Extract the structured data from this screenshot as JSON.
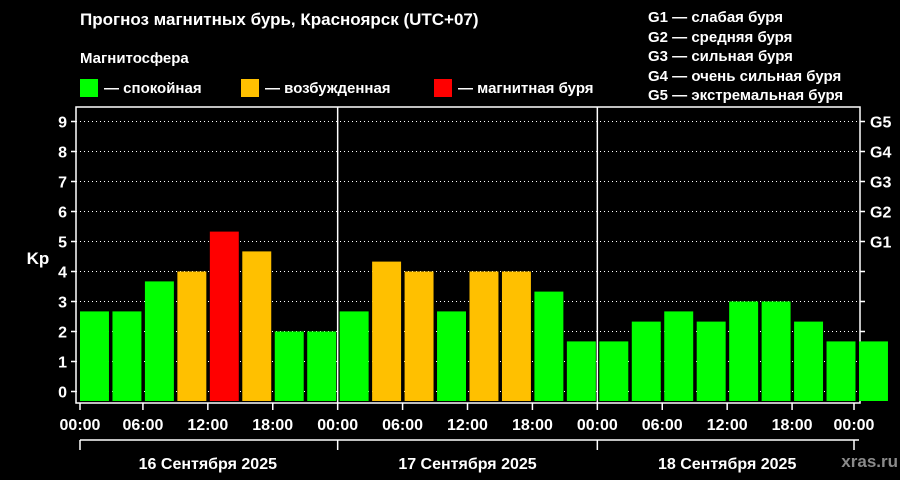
{
  "title": "Прогноз магнитных бурь, Красноярск (UTC+07)",
  "subtitle": "Магнитосфера",
  "legend": [
    {
      "label": "— спокойная",
      "color": "#00ff00"
    },
    {
      "label": "— возбужденная",
      "color": "#ffc000"
    },
    {
      "label": "— магнитная буря",
      "color": "#ff0000"
    }
  ],
  "g_legend": [
    "G1 — слабая буря",
    "G2 — средняя буря",
    "G3 — сильная буря",
    "G4 — очень сильная буря",
    "G5 — экстремальная буря"
  ],
  "watermark": "xras.ru",
  "chart_data": {
    "type": "bar",
    "ylabel": "Kp",
    "ylim": [
      0,
      9
    ],
    "yticks": [
      0,
      1,
      2,
      3,
      4,
      5,
      6,
      7,
      8,
      9
    ],
    "right_ticks": [
      {
        "value": 5,
        "label": "G1"
      },
      {
        "value": 6,
        "label": "G2"
      },
      {
        "value": 7,
        "label": "G3"
      },
      {
        "value": 8,
        "label": "G4"
      },
      {
        "value": 9,
        "label": "G5"
      }
    ],
    "xtick_labels": [
      "00:00",
      "06:00",
      "12:00",
      "18:00",
      "00:00",
      "06:00",
      "12:00",
      "18:00",
      "00:00",
      "06:00",
      "12:00",
      "18:00",
      "00:00"
    ],
    "days": [
      "16 Сентября 2025",
      "17 Сентября 2025",
      "18 Сентября 2025"
    ],
    "interval_hours": 3,
    "values": [
      2.67,
      2.67,
      3.67,
      4.0,
      5.33,
      4.67,
      2.0,
      2.0,
      2.67,
      4.33,
      4.0,
      2.67,
      4.0,
      4.0,
      3.33,
      1.67,
      1.67,
      2.33,
      2.67,
      2.33,
      3.0,
      3.0,
      2.33,
      1.67,
      1.67
    ],
    "status": [
      "quiet",
      "quiet",
      "quiet",
      "active",
      "storm",
      "active",
      "quiet",
      "quiet",
      "quiet",
      "active",
      "active",
      "quiet",
      "active",
      "active",
      "quiet",
      "quiet",
      "quiet",
      "quiet",
      "quiet",
      "quiet",
      "quiet",
      "quiet",
      "quiet",
      "quiet",
      "quiet"
    ],
    "colors": {
      "quiet": "#00ff00",
      "active": "#ffc000",
      "storm": "#ff0000"
    },
    "grid": true
  }
}
